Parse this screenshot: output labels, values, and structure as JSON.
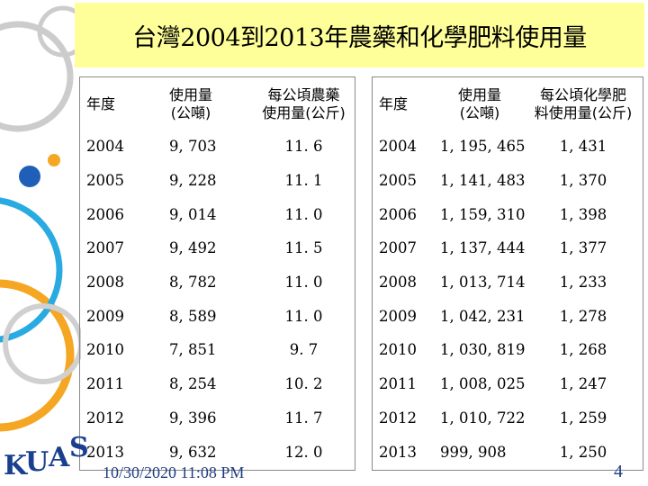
{
  "title": "台灣2004到2013年農藥和化學肥料使用量",
  "left_table": {
    "headers": [
      "年度",
      "使用量\n(公噸)",
      "每公頃農藥\n使用量(公斤)"
    ],
    "rows": [
      [
        "2004",
        "9, 703",
        "11. 6"
      ],
      [
        "2005",
        "9, 228",
        "11. 1"
      ],
      [
        "2006",
        "9, 014",
        "11. 0"
      ],
      [
        "2007",
        "9, 492",
        "11. 5"
      ],
      [
        "2008",
        "8, 782",
        "11. 0"
      ],
      [
        "2009",
        "8, 589",
        "11. 0"
      ],
      [
        "2010",
        "7, 851",
        "9. 7"
      ],
      [
        "2011",
        "8, 254",
        "10. 2"
      ],
      [
        "2012",
        "9, 396",
        "11. 7"
      ],
      [
        "2013",
        "9, 632",
        "12. 0"
      ]
    ]
  },
  "right_table": {
    "headers": [
      "年度",
      "使用量\n(公噸)",
      "每公頃化學肥\n料使用量(公斤)"
    ],
    "rows": [
      [
        "2004",
        "1, 195, 465",
        "1, 431"
      ],
      [
        "2005",
        "1, 141, 483",
        "1, 370"
      ],
      [
        "2006",
        "1, 159, 310",
        "1, 398"
      ],
      [
        "2007",
        "1, 137, 444",
        "1, 377"
      ],
      [
        "2008",
        "1, 013, 714",
        "1, 233"
      ],
      [
        "2009",
        "1, 042, 231",
        "1, 278"
      ],
      [
        "2010",
        "1, 030, 819",
        "1, 268"
      ],
      [
        "2011",
        "1, 008, 025",
        "1, 247"
      ],
      [
        "2012",
        "1, 010, 722",
        "1, 259"
      ],
      [
        "2013",
        "999, 908",
        "1, 250"
      ]
    ]
  },
  "logo_text": "KUAS",
  "footer": {
    "date": "10/30/2020 11:08 PM",
    "page_number": "4"
  },
  "colors": {
    "title_bg": "#ffff99",
    "circle_orange": "#f5a623",
    "circle_blue": "#29abe2",
    "circle_gray": "#cccccc",
    "logo": "#1b3f8f"
  }
}
